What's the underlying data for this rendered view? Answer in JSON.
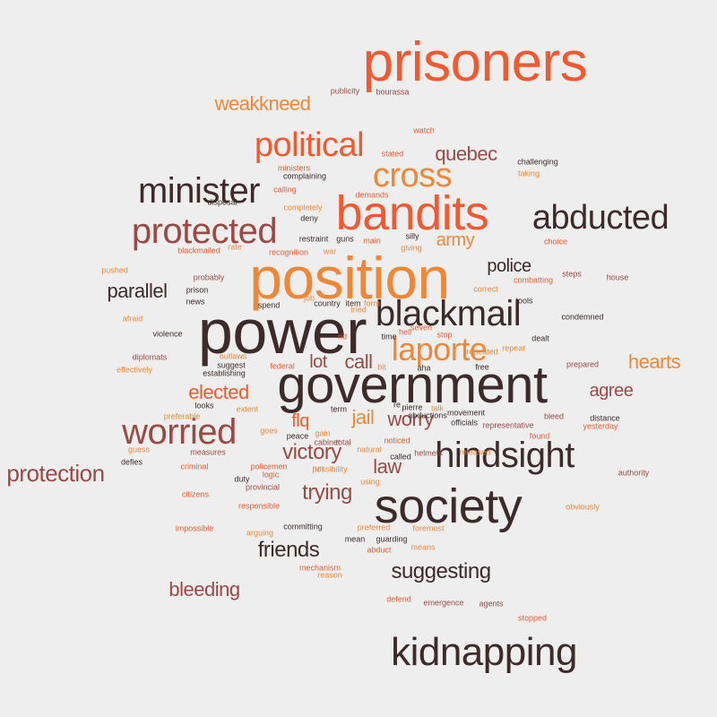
{
  "palette": {
    "dark": "#3d2b2b",
    "brown": "#9a4a44",
    "orange": "#ee8838",
    "red": "#f05a30",
    "background": "#eeeeee"
  },
  "words": [
    "prisoners",
    "position",
    "power",
    "government",
    "society",
    "bandits",
    "kidnapping",
    "blackmail",
    "hindsight",
    "minister",
    "abducted",
    "political",
    "protected",
    "cross",
    "worried",
    "laporte",
    "protection",
    "suggesting",
    "friends",
    "victory",
    "trying",
    "quebec",
    "hearts",
    "weakkneed",
    "parallel",
    "elected",
    "agree",
    "bleeding",
    "police",
    "army",
    "call",
    "lot",
    "worry",
    "jail",
    "law",
    "flq",
    "publicity",
    "bourassa",
    "watch",
    "stated",
    "challenging",
    "ministers",
    "taking",
    "complaining",
    "calling",
    "disposal",
    "completely",
    "demands",
    "deny",
    "silly",
    "restraint",
    "guns",
    "main",
    "giving",
    "choice",
    "blackmailed",
    "rate",
    "recognition",
    "war",
    "pushed",
    "probably",
    "steps",
    "house",
    "combatting",
    "correct",
    "prison",
    "news",
    "job",
    "country",
    "item",
    "form",
    "seven",
    "tools",
    "hell",
    "afraid",
    "condemned",
    "violence",
    "rid",
    "time",
    "repeat",
    "dealt",
    "diplomats",
    "outlaws",
    "suggest",
    "establishing",
    "effectively",
    "federal",
    "repeated",
    "bit",
    "free",
    "prepared",
    "aha",
    "looks",
    "preferable",
    "extent",
    "re",
    "pierre",
    "term",
    "talk",
    "movement",
    "abductions",
    "bleed",
    "goes",
    "distance",
    "gain",
    "representative",
    "officials",
    "yesterday",
    "cabinet",
    "noticed",
    "found",
    "total",
    "guess",
    "measures",
    "defies",
    "natural",
    "called",
    "criminal",
    "possibility",
    "released",
    "policemen",
    "logic",
    "helmets",
    "authority",
    "citizens",
    "duty",
    "provincial",
    "using",
    "responsible",
    "obviously",
    "impossible",
    "committing",
    "preferred",
    "arguing",
    "foremost",
    "mean",
    "guarding",
    "abduct",
    "means",
    "mechanism",
    "reason",
    "defend",
    "emergence",
    "agents",
    "stopped",
    "tried",
    "run",
    "peace",
    "spend",
    "stop"
  ]
}
